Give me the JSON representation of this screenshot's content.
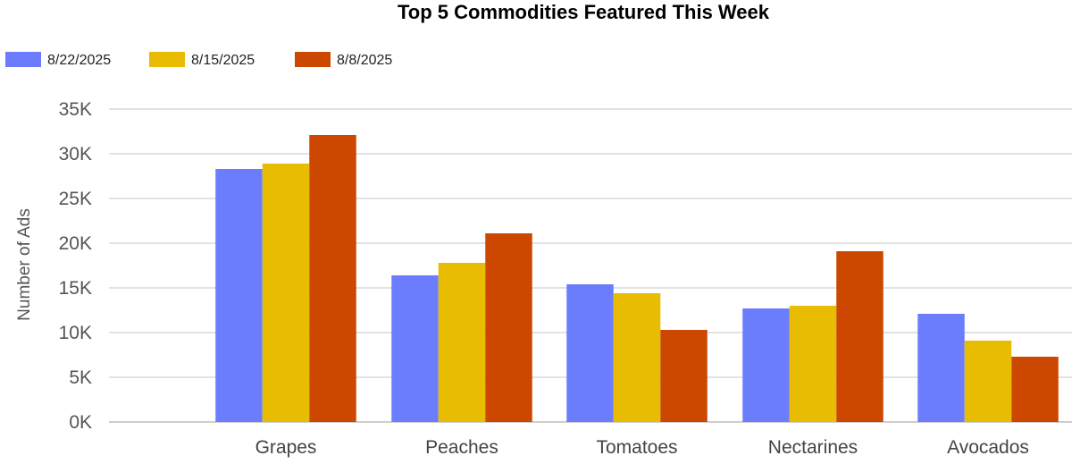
{
  "chart_data": {
    "type": "bar",
    "title": "Top 5 Commodities Featured This Week",
    "ylabel": "Number of Ads",
    "xlabel": "",
    "categories": [
      "Grapes",
      "Peaches",
      "Tomatoes",
      "Nectarines",
      "Avocados"
    ],
    "ylim": [
      0,
      35000
    ],
    "yticks": [
      0,
      5000,
      10000,
      15000,
      20000,
      25000,
      30000,
      35000
    ],
    "ytick_labels": [
      "0K",
      "5K",
      "10K",
      "15K",
      "20K",
      "25K",
      "30K",
      "35K"
    ],
    "grid": true,
    "legend_position": "top-left",
    "series": [
      {
        "name": "8/22/2025",
        "color": "#6b7dfc",
        "values": [
          28300,
          16400,
          15400,
          12700,
          12100
        ]
      },
      {
        "name": "8/15/2025",
        "color": "#e8bc00",
        "values": [
          28900,
          17800,
          14400,
          13000,
          9100
        ]
      },
      {
        "name": "8/8/2025",
        "color": "#cc4800",
        "values": [
          32100,
          21100,
          10300,
          19100,
          7300
        ]
      }
    ]
  }
}
